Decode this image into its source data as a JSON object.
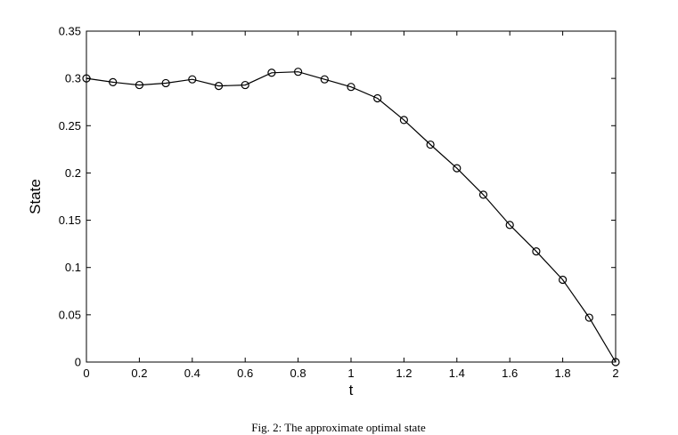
{
  "chart_data": {
    "type": "line",
    "xlabel": "t",
    "ylabel": "State",
    "xlim": [
      0,
      2
    ],
    "ylim": [
      0,
      0.35
    ],
    "x_ticks": [
      "0",
      "0.2",
      "0.4",
      "0.6",
      "0.8",
      "1",
      "1.2",
      "1.4",
      "1.6",
      "1.8",
      "2"
    ],
    "y_ticks": [
      "0",
      "0.05",
      "0.1",
      "0.15",
      "0.2",
      "0.25",
      "0.3",
      "0.35"
    ],
    "grid": false,
    "series": [
      {
        "marker": "circle",
        "color": "#000000",
        "x": [
          0,
          0.1,
          0.2,
          0.3,
          0.4,
          0.5,
          0.6,
          0.7,
          0.8,
          0.9,
          1.0,
          1.1,
          1.2,
          1.3,
          1.4,
          1.5,
          1.6,
          1.7,
          1.8,
          1.9,
          2.0
        ],
        "y": [
          0.3,
          0.296,
          0.293,
          0.295,
          0.299,
          0.292,
          0.293,
          0.306,
          0.307,
          0.299,
          0.291,
          0.279,
          0.256,
          0.23,
          0.205,
          0.177,
          0.145,
          0.117,
          0.087,
          0.047,
          0.0
        ]
      }
    ]
  },
  "caption": "Fig. 2: The approximate optimal state"
}
